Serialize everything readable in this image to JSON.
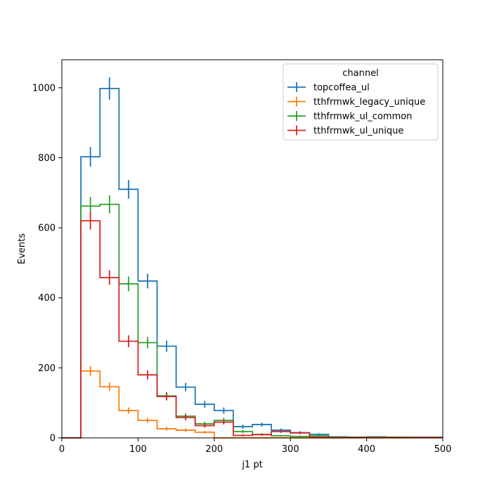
{
  "chart_data": {
    "type": "histogram",
    "xlabel": "j1 pt",
    "ylabel": "Events",
    "xlim": [
      0,
      500
    ],
    "ylim": [
      0,
      1080
    ],
    "xticks": [
      0,
      100,
      200,
      300,
      400,
      500
    ],
    "yticks": [
      0,
      200,
      400,
      600,
      800,
      1000
    ],
    "grid": false,
    "legend": {
      "title": "channel",
      "placement": "top-right"
    },
    "bin_edges": [
      0,
      25,
      50,
      75,
      100,
      125,
      150,
      175,
      200,
      225,
      250,
      275,
      300,
      325,
      350,
      375,
      400,
      425,
      450,
      475,
      500
    ],
    "series": [
      {
        "name": "topcoffea_ul",
        "color": "#1f77b4",
        "values": [
          0,
          803,
          998,
          710,
          448,
          262,
          145,
          96,
          78,
          32,
          38,
          22,
          15,
          10,
          3,
          2,
          3,
          2,
          2,
          2
        ],
        "errors": [
          0,
          28,
          32,
          27,
          21,
          16,
          12,
          10,
          9,
          6,
          6,
          5,
          4,
          3,
          2,
          1,
          2,
          1,
          1,
          1
        ]
      },
      {
        "name": "tthfrmwk_legacy_unique",
        "color": "#ff7f0e",
        "values": [
          0,
          191,
          146,
          78,
          50,
          26,
          22,
          16,
          0,
          0,
          0,
          0,
          0,
          0,
          0,
          0,
          0,
          0,
          0,
          0
        ],
        "errors": [
          0,
          14,
          12,
          9,
          7,
          5,
          5,
          4,
          0,
          0,
          0,
          0,
          0,
          0,
          0,
          0,
          0,
          0,
          0,
          0
        ]
      },
      {
        "name": "tthfrmwk_ul_common",
        "color": "#2ca02c",
        "values": [
          0,
          662,
          667,
          440,
          272,
          120,
          62,
          40,
          50,
          18,
          10,
          6,
          4,
          6,
          2,
          2,
          2,
          2,
          1,
          1
        ],
        "errors": [
          0,
          26,
          26,
          21,
          16,
          11,
          8,
          6,
          7,
          4,
          3,
          2,
          2,
          2,
          1,
          1,
          1,
          1,
          1,
          1
        ]
      },
      {
        "name": "tthfrmwk_ul_unique",
        "color": "#d62728",
        "values": [
          0,
          620,
          458,
          276,
          180,
          118,
          58,
          35,
          45,
          7,
          9,
          18,
          14,
          2,
          1,
          1,
          1,
          1,
          1,
          1
        ],
        "errors": [
          0,
          25,
          21,
          17,
          13,
          11,
          8,
          6,
          7,
          3,
          3,
          4,
          4,
          1,
          1,
          1,
          1,
          1,
          1,
          1
        ]
      }
    ]
  }
}
